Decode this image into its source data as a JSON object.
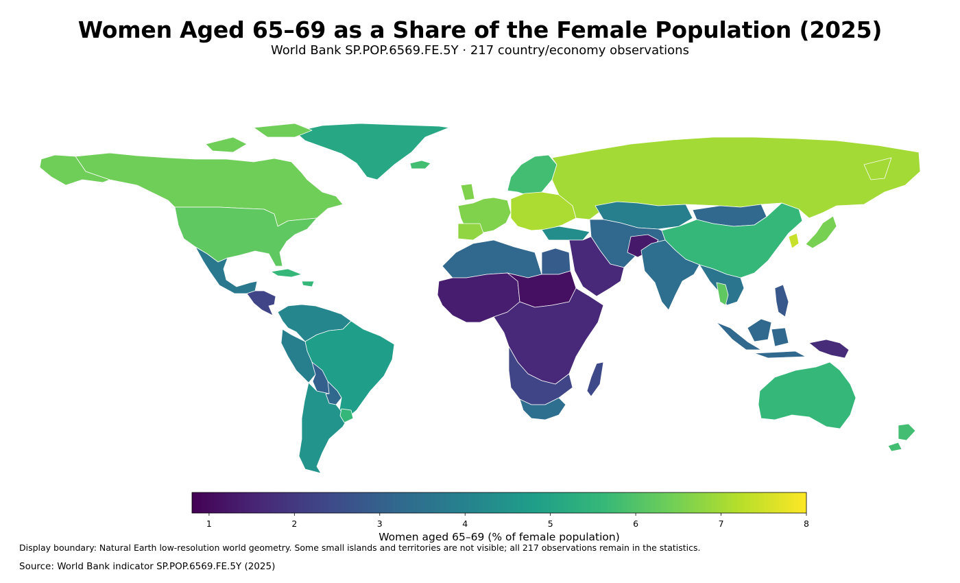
{
  "title": "Women Aged 65–69 as a Share of the Female Population (2025)",
  "subtitle": "World Bank SP.POP.6569.FE.5Y · 217 country/economy observations",
  "colorbar": {
    "label": "Women aged 65–69 (% of female population)",
    "min": 0.8,
    "max": 8,
    "ticks": [
      1,
      2,
      3,
      4,
      5,
      6,
      7,
      8
    ],
    "colormap": "viridis",
    "stops": [
      "#440154",
      "#482878",
      "#3e4989",
      "#31688e",
      "#26828e",
      "#1f9e89",
      "#35b779",
      "#6ece58",
      "#b5de2b",
      "#fde725"
    ]
  },
  "note": "Display boundary: Natural Earth low-resolution world geometry. Some small islands and territories are not visible; all 217 observations remain in the statistics.",
  "source": "Source: World Bank indicator SP.POP.6569.FE.5Y (2025)",
  "regions": [
    {
      "name": "Greenland",
      "value": 5.1
    },
    {
      "name": "Canada",
      "value": 6.4
    },
    {
      "name": "Alaska",
      "value": 6.4
    },
    {
      "name": "United States",
      "value": 6.2
    },
    {
      "name": "Mexico",
      "value": 3.7
    },
    {
      "name": "Central America",
      "value": 2.3
    },
    {
      "name": "Cuba",
      "value": 5.6
    },
    {
      "name": "Colombia / Venezuela",
      "value": 4.1
    },
    {
      "name": "Brazil",
      "value": 4.8
    },
    {
      "name": "Peru",
      "value": 3.9
    },
    {
      "name": "Bolivia",
      "value": 3.0
    },
    {
      "name": "Paraguay",
      "value": 3.2
    },
    {
      "name": "Chile / Argentina",
      "value": 4.5
    },
    {
      "name": "Uruguay",
      "value": 5.6
    },
    {
      "name": "Iceland / Scandinavia",
      "value": 5.8
    },
    {
      "name": "Western Europe",
      "value": 6.6
    },
    {
      "name": "Spain / Portugal",
      "value": 6.8
    },
    {
      "name": "Eastern Europe",
      "value": 7.1
    },
    {
      "name": "Russia",
      "value": 7.0
    },
    {
      "name": "Kazakhstan",
      "value": 3.9
    },
    {
      "name": "Mongolia",
      "value": 3.2
    },
    {
      "name": "China",
      "value": 5.6
    },
    {
      "name": "Japan",
      "value": 6.5
    },
    {
      "name": "Korea",
      "value": 7.4
    },
    {
      "name": "Turkey",
      "value": 4.3
    },
    {
      "name": "Central Asia / Iran",
      "value": 3.2
    },
    {
      "name": "Arabian Peninsula",
      "value": 1.6
    },
    {
      "name": "Afghanistan",
      "value": 1.3
    },
    {
      "name": "India",
      "value": 3.4
    },
    {
      "name": "Southeast Asia",
      "value": 3.6
    },
    {
      "name": "Thailand",
      "value": 6.2
    },
    {
      "name": "Indonesia",
      "value": 3.2
    },
    {
      "name": "Philippines",
      "value": 2.8
    },
    {
      "name": "Papua New Guinea",
      "value": 1.7
    },
    {
      "name": "Australia",
      "value": 5.6
    },
    {
      "name": "New Zealand",
      "value": 5.8
    },
    {
      "name": "North Africa",
      "value": 3.2
    },
    {
      "name": "Egypt",
      "value": 2.9
    },
    {
      "name": "West Africa",
      "value": 1.4
    },
    {
      "name": "Sahel",
      "value": 1.1
    },
    {
      "name": "Central / East Africa",
      "value": 1.6
    },
    {
      "name": "Southern Africa",
      "value": 2.3
    },
    {
      "name": "South Africa",
      "value": 3.4
    },
    {
      "name": "Madagascar",
      "value": 2.4
    }
  ]
}
